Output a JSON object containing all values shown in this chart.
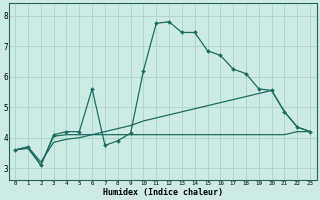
{
  "xlabel": "Humidex (Indice chaleur)",
  "background_color": "#ceeae4",
  "grid_color": "#aad4cc",
  "line_color": "#1a6e60",
  "x_ticks": [
    0,
    1,
    2,
    3,
    4,
    5,
    6,
    7,
    8,
    9,
    10,
    11,
    12,
    13,
    14,
    15,
    16,
    17,
    18,
    19,
    20,
    21,
    22,
    23
  ],
  "y_ticks": [
    3,
    4,
    5,
    6,
    7,
    8
  ],
  "ylim": [
    2.6,
    8.4
  ],
  "xlim": [
    -0.5,
    23.5
  ],
  "line1_x": [
    0,
    1,
    2,
    3,
    4,
    5,
    6,
    7,
    8,
    9,
    10,
    11,
    12,
    13,
    14,
    15,
    16,
    17,
    18,
    19,
    20,
    21,
    22,
    23
  ],
  "line1_y": [
    3.6,
    3.7,
    3.1,
    4.1,
    4.2,
    4.2,
    5.6,
    3.75,
    3.9,
    4.15,
    6.2,
    7.75,
    7.8,
    7.45,
    7.45,
    6.85,
    6.7,
    6.25,
    6.1,
    5.6,
    5.55,
    4.85,
    4.35,
    4.2
  ],
  "line2_x": [
    0,
    1,
    2,
    3,
    4,
    5,
    6,
    7,
    8,
    9,
    10,
    11,
    12,
    13,
    14,
    15,
    16,
    17,
    18,
    19,
    20,
    21,
    22,
    23
  ],
  "line2_y": [
    3.6,
    3.65,
    3.1,
    4.05,
    4.1,
    4.1,
    4.1,
    4.1,
    4.1,
    4.1,
    4.1,
    4.1,
    4.1,
    4.1,
    4.1,
    4.1,
    4.1,
    4.1,
    4.1,
    4.1,
    4.1,
    4.1,
    4.2,
    4.2
  ],
  "line3_x": [
    0,
    1,
    2,
    3,
    4,
    5,
    6,
    7,
    8,
    9,
    10,
    11,
    12,
    13,
    14,
    15,
    16,
    17,
    18,
    19,
    20,
    21,
    22,
    23
  ],
  "line3_y": [
    3.6,
    3.7,
    3.2,
    3.85,
    3.95,
    4.0,
    4.1,
    4.2,
    4.3,
    4.4,
    4.55,
    4.65,
    4.75,
    4.85,
    4.95,
    5.05,
    5.15,
    5.25,
    5.35,
    5.45,
    5.55,
    4.85,
    4.35,
    4.2
  ]
}
